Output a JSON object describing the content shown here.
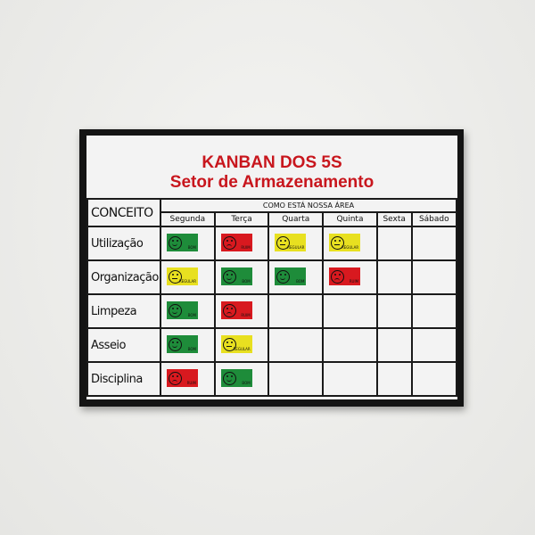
{
  "title": "KANBAN DOS 5S",
  "subtitle": "Setor de Armazenamento",
  "concept_header": "CONCEITO",
  "group_header": "COMO ESTÁ NOSSA ÁREA",
  "days": [
    "Segunda",
    "Terça",
    "Quarta",
    "Quinta",
    "Sexta",
    "Sábado"
  ],
  "colors": {
    "bom": "#1e8c3a",
    "regular": "#e8e020",
    "ruim": "#d8191f",
    "title": "#c8161d"
  },
  "rows": [
    {
      "label": "Utilização",
      "cards": [
        {
          "status": "bom",
          "text": "BOM"
        },
        {
          "status": "ruim",
          "text": "RUIM"
        },
        {
          "status": "regular",
          "text": "REGULAR"
        },
        {
          "status": "regular",
          "text": "REGULAR"
        },
        null,
        null
      ]
    },
    {
      "label": "Organização",
      "cards": [
        {
          "status": "regular",
          "text": "REGULAR"
        },
        {
          "status": "bom",
          "text": "BOM"
        },
        {
          "status": "bom",
          "text": "BOM"
        },
        {
          "status": "ruim",
          "text": "RUIM"
        },
        null,
        null
      ]
    },
    {
      "label": "Limpeza",
      "cards": [
        {
          "status": "bom",
          "text": "BOM"
        },
        {
          "status": "ruim",
          "text": "RUIM"
        },
        null,
        null,
        null,
        null
      ]
    },
    {
      "label": "Asseio",
      "cards": [
        {
          "status": "bom",
          "text": "BOM"
        },
        {
          "status": "regular",
          "text": "REGULAR"
        },
        null,
        null,
        null,
        null
      ]
    },
    {
      "label": "Disciplina",
      "cards": [
        {
          "status": "ruim",
          "text": "RUIM"
        },
        {
          "status": "bom",
          "text": "BOM"
        },
        null,
        null,
        null,
        null
      ]
    }
  ]
}
